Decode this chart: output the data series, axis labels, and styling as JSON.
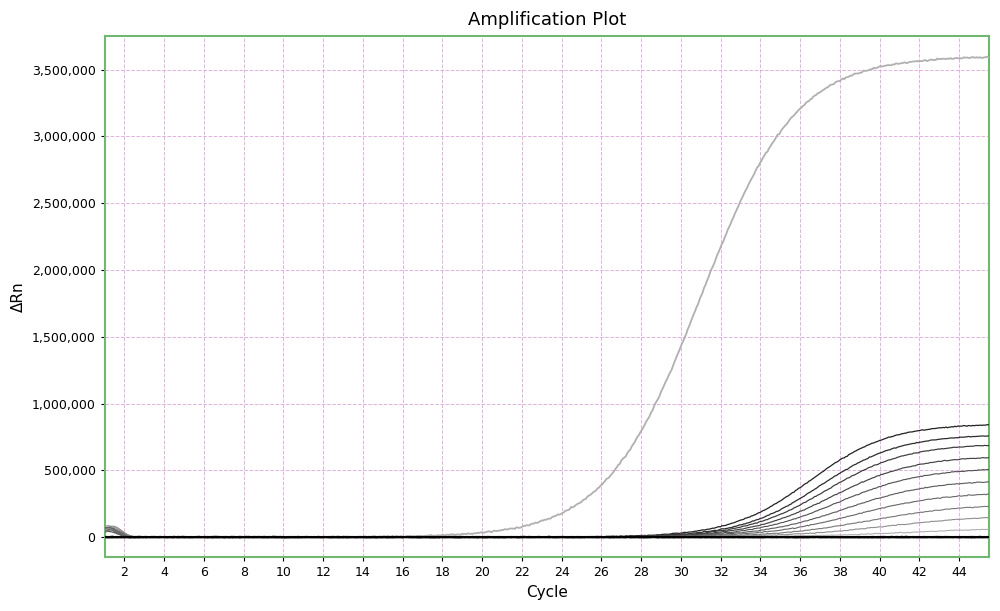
{
  "title": "Amplification Plot",
  "xlabel": "Cycle",
  "ylabel": "ΔRn",
  "xlim": [
    1,
    45.5
  ],
  "ylim": [
    -150000,
    3750000
  ],
  "xticks": [
    2,
    4,
    6,
    8,
    10,
    12,
    14,
    16,
    18,
    20,
    22,
    24,
    26,
    28,
    30,
    32,
    34,
    36,
    38,
    40,
    42,
    44
  ],
  "yticks": [
    0,
    500000,
    1000000,
    1500000,
    2000000,
    2500000,
    3000000,
    3500000
  ],
  "background_color": "#ffffff",
  "plot_bg_color": "#ffffff",
  "border_color": "#70b870",
  "grid_color": "#ddaadd",
  "title_fontsize": 13,
  "axis_label_fontsize": 11,
  "main_curve_color": "#b0b0b0",
  "flat_line_color": "#111111"
}
